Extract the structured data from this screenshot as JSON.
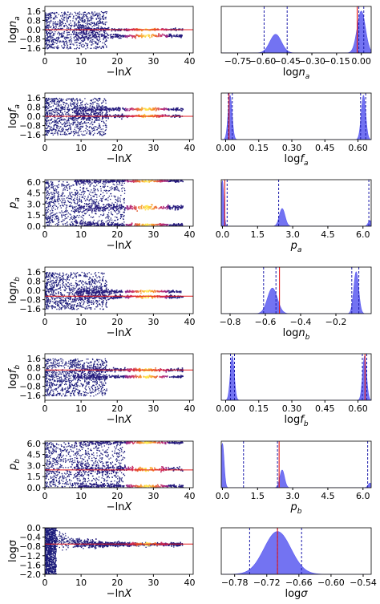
{
  "chart_data": [
    {
      "row": 0,
      "panel": "trace",
      "type": "scatter",
      "xlabel": "−lnX",
      "ylabel": "log",
      "ylabel_sub": "a",
      "ylabel_base": "n",
      "xlim": [
        0,
        41
      ],
      "ylim": [
        -2.0,
        2.0
      ],
      "xticks": [
        0,
        10,
        20,
        30,
        40
      ],
      "yticks": [
        1.6,
        0.8,
        0.0,
        -0.8,
        -1.6
      ],
      "ytick_labels": [
        "1.6",
        "0.8",
        "0.0",
        "−0.8",
        "−1.6"
      ],
      "truth": 0.0,
      "bands": [
        {
          "y": 0.0,
          "spread": 0.04
        },
        {
          "y": -0.55,
          "spread": 0.06
        }
      ],
      "noise": {
        "ymin": -1.6,
        "ymax": 1.6,
        "xmax": 17
      }
    },
    {
      "row": 0,
      "panel": "hist",
      "type": "area",
      "xlabel": "logn",
      "xlabel_sub": "a",
      "xlim": [
        -0.85,
        0.06
      ],
      "xticks": [
        -0.75,
        -0.6,
        -0.45,
        -0.3,
        -0.15,
        0.0
      ],
      "xtick_labels": [
        "−0.75",
        "−0.60",
        "−0.45",
        "−0.30",
        "−0.15",
        "0.00"
      ],
      "peaks": [
        {
          "mu": -0.52,
          "sigma": 0.035,
          "h": 0.4
        },
        {
          "mu": 0.0,
          "sigma": 0.025,
          "h": 0.9
        }
      ],
      "dashed": [
        -0.59,
        -0.45,
        -0.015,
        0.015
      ],
      "truth": -0.025
    },
    {
      "row": 1,
      "panel": "trace",
      "type": "scatter",
      "xlabel": "−lnX",
      "ylabel": "log",
      "ylabel_sub": "a",
      "ylabel_base": "f",
      "xlim": [
        0,
        41
      ],
      "ylim": [
        -2.0,
        2.0
      ],
      "xticks": [
        0,
        10,
        20,
        30,
        40
      ],
      "yticks": [
        1.6,
        0.8,
        0.0,
        -0.8,
        -1.6
      ],
      "ytick_labels": [
        "1.6",
        "0.8",
        "0.0",
        "−0.8",
        "−1.6"
      ],
      "truth": 0.0,
      "bands": [
        {
          "y": 0.6,
          "spread": 0.06
        },
        {
          "y": 0.03,
          "spread": 0.05
        }
      ],
      "noise": {
        "ymin": -1.6,
        "ymax": 1.6,
        "xmax": 17
      }
    },
    {
      "row": 1,
      "panel": "hist",
      "type": "area",
      "xlabel": "logf",
      "xlabel_sub": "a",
      "xlim": [
        -0.02,
        0.66
      ],
      "xticks": [
        0.0,
        0.15,
        0.3,
        0.45,
        0.6
      ],
      "xtick_labels": [
        "0.00",
        "0.15",
        "0.30",
        "0.45",
        "0.60"
      ],
      "peaks": [
        {
          "mu": 0.02,
          "sigma": 0.009,
          "h": 0.95
        },
        {
          "mu": 0.625,
          "sigma": 0.01,
          "h": 0.95
        }
      ],
      "dashed": [
        0.012,
        0.03,
        0.612,
        0.635
      ],
      "truth": 0.015
    },
    {
      "row": 2,
      "panel": "trace",
      "type": "scatter",
      "xlabel": "−lnX",
      "ylabel": "p",
      "ylabel_sub": "a",
      "xlim": [
        0,
        41
      ],
      "ylim": [
        0,
        6.3
      ],
      "xticks": [
        0,
        10,
        20,
        30,
        40
      ],
      "yticks": [
        6.0,
        4.5,
        3.0,
        1.5,
        0.0
      ],
      "ytick_labels": [
        "6.0",
        "4.5",
        "3.0",
        "1.5",
        "0.0"
      ],
      "truth": null,
      "bands": [
        {
          "y": 2.5,
          "spread": 0.15
        },
        {
          "y": 0.2,
          "spread": 0.08
        },
        {
          "y": 6.1,
          "spread": 0.06
        }
      ],
      "noise": {
        "ymin": 0,
        "ymax": 6.2,
        "xmax": 22
      }
    },
    {
      "row": 2,
      "panel": "hist",
      "type": "area",
      "xlabel": "p",
      "xlabel_sub": "a",
      "xlim": [
        -0.05,
        6.35
      ],
      "xticks": [
        0.0,
        1.5,
        3.0,
        4.5,
        6.0
      ],
      "xtick_labels": [
        "0.0",
        "1.5",
        "3.0",
        "4.5",
        "6.0"
      ],
      "peaks": [
        {
          "mu": 0.0,
          "sigma": 0.06,
          "h": 0.98
        },
        {
          "mu": 2.55,
          "sigma": 0.12,
          "h": 0.38
        },
        {
          "mu": 6.3,
          "sigma": 0.08,
          "h": 0.12
        }
      ],
      "dashed": [
        0.2,
        2.4,
        6.25
      ],
      "truth": 0.1
    },
    {
      "row": 3,
      "panel": "trace",
      "type": "scatter",
      "xlabel": "−lnX",
      "ylabel": "log",
      "ylabel_sub": "b",
      "ylabel_base": "n",
      "xlim": [
        0,
        41
      ],
      "ylim": [
        -2.0,
        2.0
      ],
      "xticks": [
        0,
        10,
        20,
        30,
        40
      ],
      "yticks": [
        1.6,
        0.8,
        0.0,
        -0.8,
        -1.6
      ],
      "ytick_labels": [
        "1.6",
        "0.8",
        "0.0",
        "−0.8",
        "−1.6"
      ],
      "truth": -0.5,
      "bands": [
        {
          "y": -0.1,
          "spread": 0.05
        },
        {
          "y": -0.55,
          "spread": 0.06
        }
      ],
      "noise": {
        "ymin": -1.6,
        "ymax": 1.6,
        "xmax": 17
      }
    },
    {
      "row": 3,
      "panel": "hist",
      "type": "area",
      "xlabel": "logn",
      "xlabel_sub": "b",
      "xlim": [
        -0.85,
        0.0
      ],
      "xticks": [
        -0.8,
        -0.6,
        -0.4,
        -0.2
      ],
      "xtick_labels": [
        "−0.8",
        "−0.6",
        "−0.4",
        "−0.2"
      ],
      "peaks": [
        {
          "mu": -0.56,
          "sigma": 0.028,
          "h": 0.55
        },
        {
          "mu": -0.085,
          "sigma": 0.014,
          "h": 0.9
        }
      ],
      "dashed": [
        -0.61,
        -0.54,
        -0.11,
        -0.07
      ],
      "truth": -0.52
    },
    {
      "row": 4,
      "panel": "trace",
      "type": "scatter",
      "xlabel": "−lnX",
      "ylabel": "log",
      "ylabel_sub": "b",
      "ylabel_base": "f",
      "xlim": [
        0,
        41
      ],
      "ylim": [
        -2.0,
        2.0
      ],
      "xticks": [
        0,
        10,
        20,
        30,
        40
      ],
      "yticks": [
        1.6,
        0.8,
        0.0,
        -0.8,
        -1.6
      ],
      "ytick_labels": [
        "1.6",
        "0.8",
        "0.0",
        "−0.8",
        "−1.6"
      ],
      "truth": 0.6,
      "bands": [
        {
          "y": 0.6,
          "spread": 0.06
        },
        {
          "y": 0.03,
          "spread": 0.05
        }
      ],
      "noise": {
        "ymin": -1.6,
        "ymax": 1.6,
        "xmax": 17
      }
    },
    {
      "row": 4,
      "panel": "hist",
      "type": "area",
      "xlabel": "logf",
      "xlabel_sub": "b",
      "xlim": [
        -0.02,
        0.66
      ],
      "xticks": [
        0.0,
        0.15,
        0.3,
        0.45,
        0.6
      ],
      "xtick_labels": [
        "0.00",
        "0.15",
        "0.30",
        "0.45",
        "0.60"
      ],
      "peaks": [
        {
          "mu": 0.03,
          "sigma": 0.009,
          "h": 0.95
        },
        {
          "mu": 0.63,
          "sigma": 0.009,
          "h": 0.95
        }
      ],
      "dashed": [
        0.022,
        0.04,
        0.62,
        0.64
      ],
      "truth": 0.632
    },
    {
      "row": 5,
      "panel": "trace",
      "type": "scatter",
      "xlabel": "−lnX",
      "ylabel": "p",
      "ylabel_sub": "b",
      "xlim": [
        0,
        41
      ],
      "ylim": [
        0,
        6.3
      ],
      "xticks": [
        0,
        10,
        20,
        30,
        40
      ],
      "yticks": [
        6.0,
        4.5,
        3.0,
        1.5,
        0.0
      ],
      "ytick_labels": [
        "6.0",
        "4.5",
        "3.0",
        "1.5",
        "0.0"
      ],
      "truth": 2.4,
      "bands": [
        {
          "y": 2.5,
          "spread": 0.15
        },
        {
          "y": 0.2,
          "spread": 0.08
        },
        {
          "y": 6.1,
          "spread": 0.06
        }
      ],
      "noise": {
        "ymin": 0,
        "ymax": 6.2,
        "xmax": 22
      }
    },
    {
      "row": 5,
      "panel": "hist",
      "type": "area",
      "xlabel": "p",
      "xlabel_sub": "b",
      "xlim": [
        -0.05,
        6.35
      ],
      "xticks": [
        0.0,
        1.5,
        3.0,
        4.5,
        6.0
      ],
      "xtick_labels": [
        "0.0",
        "1.5",
        "3.0",
        "4.5",
        "6.0"
      ],
      "peaks": [
        {
          "mu": 0.0,
          "sigma": 0.07,
          "h": 0.95
        },
        {
          "mu": 2.55,
          "sigma": 0.1,
          "h": 0.38
        },
        {
          "mu": 6.3,
          "sigma": 0.08,
          "h": 0.1
        }
      ],
      "dashed": [
        0.9,
        2.35,
        6.2
      ],
      "truth": 2.42
    },
    {
      "row": 6,
      "panel": "trace",
      "type": "scatter",
      "xlabel": "−lnX",
      "ylabel": "logσ",
      "xlim": [
        0,
        41
      ],
      "ylim": [
        -2.0,
        0.0
      ],
      "xticks": [
        0,
        10,
        20,
        30,
        40
      ],
      "yticks": [
        0.0,
        -0.4,
        -0.8,
        -1.2,
        -1.6,
        -2.0
      ],
      "ytick_labels": [
        "0.0",
        "−0.4",
        "−0.8",
        "−1.2",
        "−1.6",
        "−2.0"
      ],
      "truth": -0.7,
      "bands": [
        {
          "y": -0.7,
          "spread": 0.03
        }
      ],
      "noise": {
        "ymin": -2.0,
        "ymax": 0.0,
        "xmax": 3
      }
    },
    {
      "row": 6,
      "panel": "hist",
      "type": "area",
      "xlabel": "logσ",
      "xlim": [
        -0.805,
        -0.525
      ],
      "xticks": [
        -0.78,
        -0.72,
        -0.66,
        -0.6,
        -0.54
      ],
      "xtick_labels": [
        "−0.78",
        "−0.72",
        "−0.66",
        "−0.60",
        "−0.54"
      ],
      "peaks": [
        {
          "mu": -0.7,
          "sigma": 0.025,
          "h": 0.92
        }
      ],
      "dashed": [
        -0.752,
        -0.7,
        -0.655
      ],
      "truth": -0.7
    }
  ],
  "colors": {
    "fill": "#5a5af0",
    "dashed": "#1a1aaa",
    "truth": "#e41a1c",
    "scatter": "#1a1a7a"
  }
}
